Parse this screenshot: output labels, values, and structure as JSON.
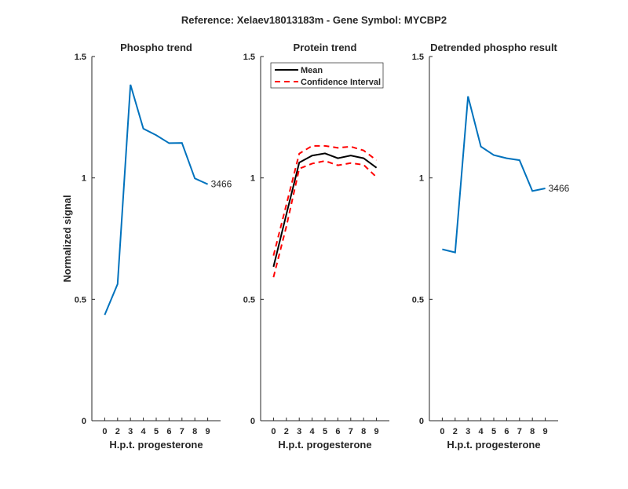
{
  "figure_title": "Reference:  Xelaev18013183m - Gene Symbol:  MYCBP2",
  "chart_data": [
    {
      "type": "line",
      "title": "Phospho trend",
      "xlabel": "H.p.t. progesterone",
      "ylabel": "Normalized signal",
      "categories": [
        "0",
        "2",
        "3",
        "4",
        "5",
        "6",
        "7",
        "8",
        "9"
      ],
      "ylim": [
        0,
        1.5
      ],
      "yticks": [
        "0",
        "0.5",
        "1",
        "1.5"
      ],
      "grid": false,
      "series": [
        {
          "color": "#0072bd",
          "values": [
            0.436,
            0.563,
            1.384,
            1.203,
            1.176,
            1.143,
            1.144,
            0.998,
            0.974
          ],
          "end_label": "3466"
        }
      ]
    },
    {
      "type": "line",
      "title": "Protein trend",
      "xlabel": "H.p.t. progesterone",
      "categories": [
        "0",
        "2",
        "3",
        "4",
        "5",
        "6",
        "7",
        "8",
        "9"
      ],
      "ylim": [
        0,
        1.5
      ],
      "yticks": [
        "0",
        "0.5",
        "1",
        "1.5"
      ],
      "grid": false,
      "legend": "top-left",
      "series": [
        {
          "name": "Mean",
          "color": "#000000",
          "style": "solid",
          "values": [
            0.634,
            0.85,
            1.063,
            1.092,
            1.101,
            1.081,
            1.092,
            1.081,
            1.042
          ]
        },
        {
          "name": "Confidence Interval",
          "color": "#ff0000",
          "style": "dashed",
          "values": [
            0.68,
            0.89,
            1.1,
            1.132,
            1.132,
            1.124,
            1.129,
            1.113,
            1.073
          ]
        },
        {
          "color": "#ff0000",
          "style": "dashed",
          "values": [
            0.591,
            0.8,
            1.038,
            1.059,
            1.07,
            1.052,
            1.061,
            1.054,
            1.003
          ]
        }
      ]
    },
    {
      "type": "line",
      "title": "Detrended phospho result",
      "xlabel": "H.p.t. progesterone",
      "categories": [
        "0",
        "2",
        "3",
        "4",
        "5",
        "6",
        "7",
        "8",
        "9"
      ],
      "ylim": [
        0,
        1.5
      ],
      "yticks": [
        "0",
        "0.5",
        "1",
        "1.5"
      ],
      "grid": false,
      "series": [
        {
          "color": "#0072bd",
          "values": [
            0.706,
            0.693,
            1.336,
            1.129,
            1.094,
            1.081,
            1.073,
            0.946,
            0.957
          ],
          "end_label": "3466"
        }
      ]
    }
  ]
}
